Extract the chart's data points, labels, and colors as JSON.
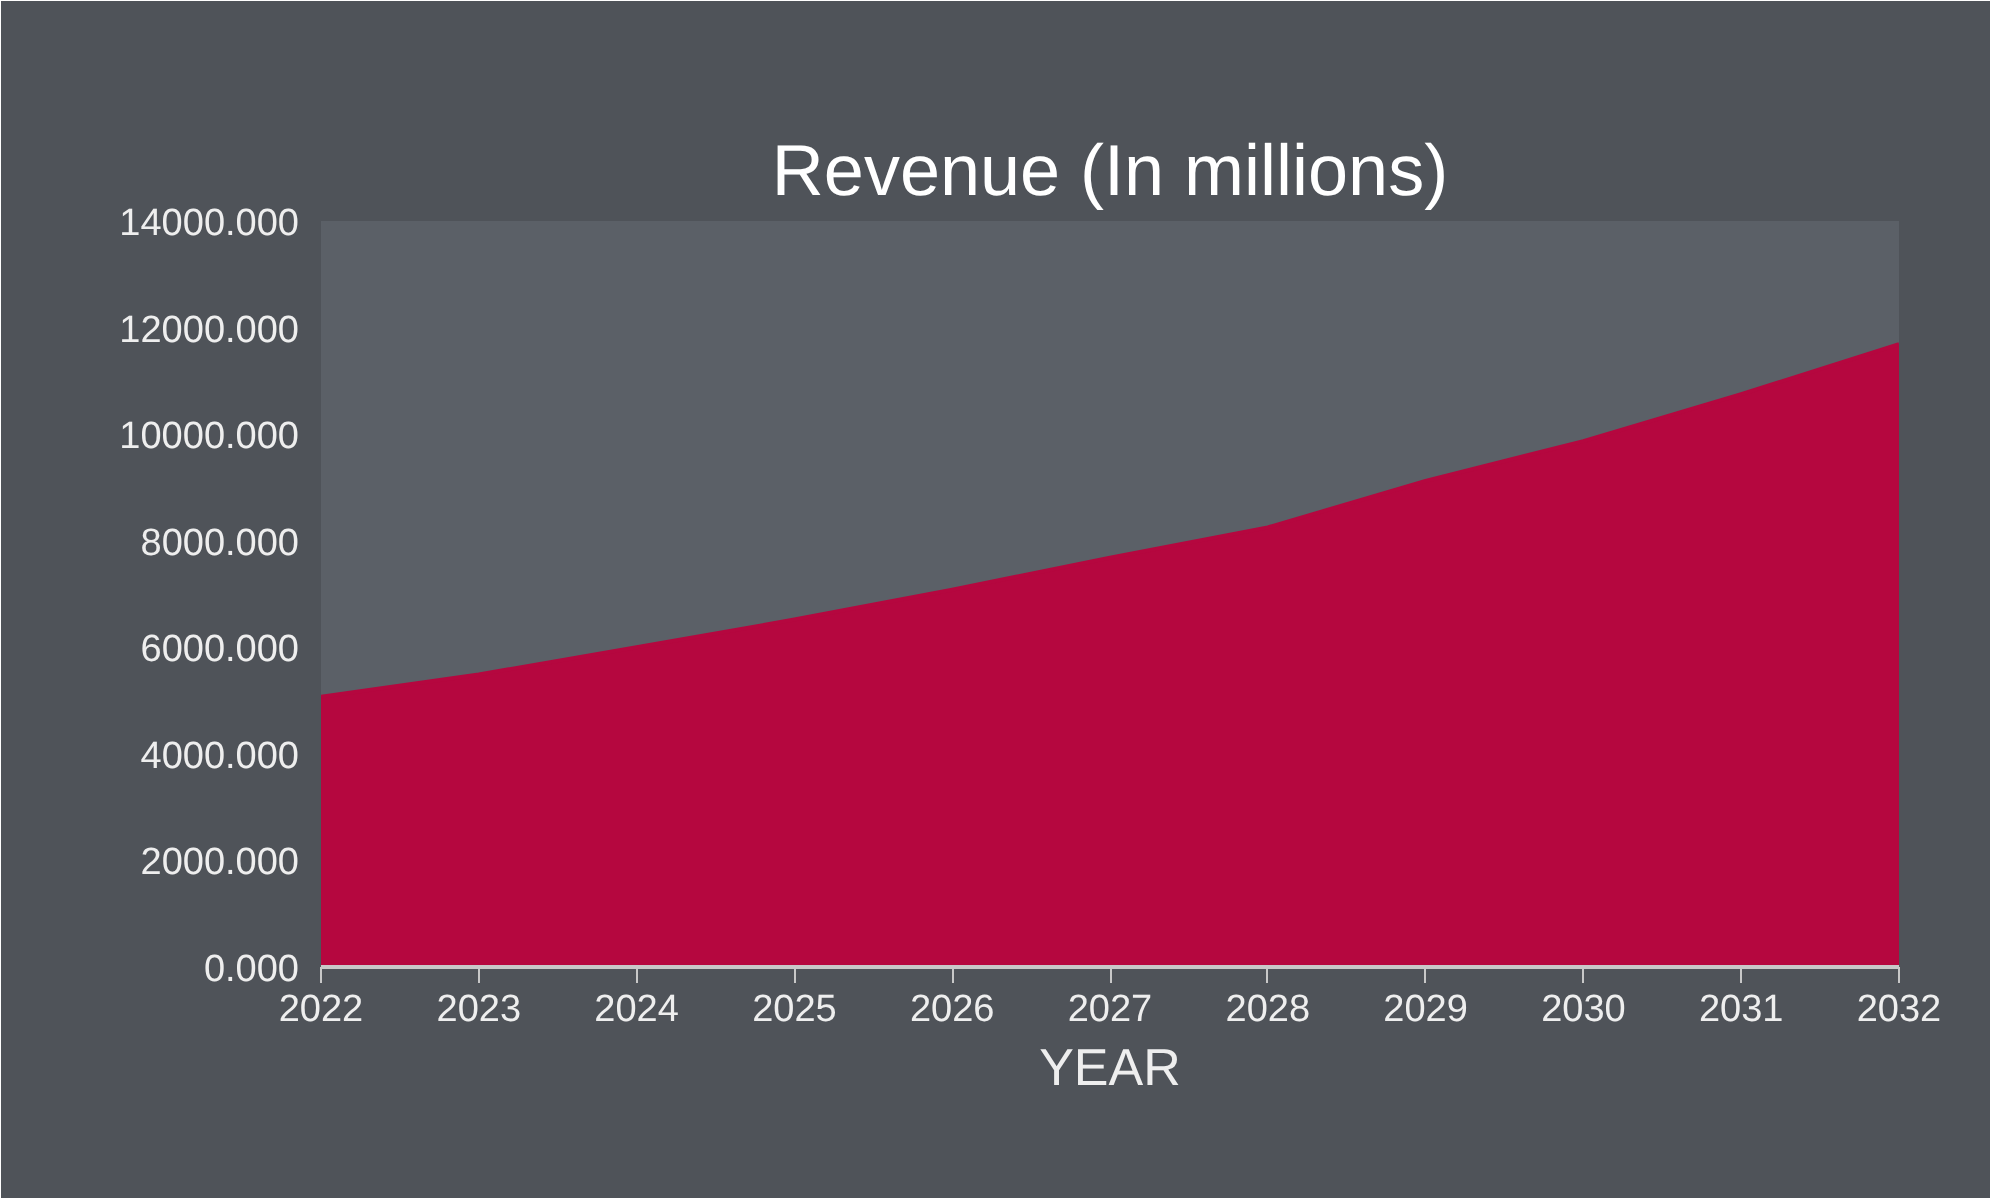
{
  "chart_data": {
    "type": "area",
    "title": "Revenue (In millions)",
    "xlabel": "YEAR",
    "categories": [
      "2022",
      "2023",
      "2024",
      "2025",
      "2026",
      "2027",
      "2028",
      "2029",
      "2030",
      "2031",
      "2032"
    ],
    "series": [
      {
        "color": "#b5073f",
        "values": [
          5070,
          5490,
          6000,
          6520,
          7080,
          7680,
          8250,
          9120,
          9870,
          10750,
          11690
        ]
      }
    ],
    "ylim": [
      0,
      14000
    ],
    "yticks": [
      {
        "value": 0,
        "label": "0.000"
      },
      {
        "value": 2000,
        "label": "2000.000"
      },
      {
        "value": 4000,
        "label": "4000.000"
      },
      {
        "value": 6000,
        "label": "6000.000"
      },
      {
        "value": 8000,
        "label": "8000.000"
      },
      {
        "value": 10000,
        "label": "10000.000"
      },
      {
        "value": 12000,
        "label": "12000.000"
      },
      {
        "value": 14000,
        "label": "14000.000"
      }
    ],
    "grid": false
  }
}
